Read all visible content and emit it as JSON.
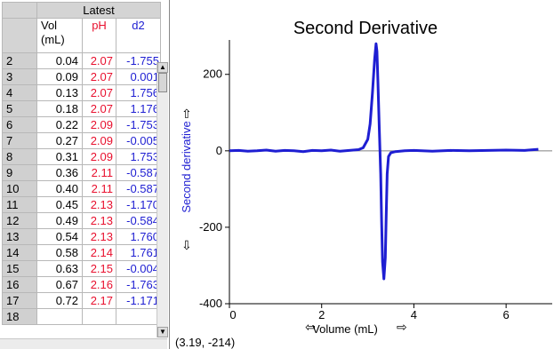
{
  "table": {
    "group_header": "Latest",
    "columns": [
      {
        "name": "Vol",
        "unit": "(mL)",
        "color": "#000000"
      },
      {
        "name": "pH",
        "unit": "",
        "color": "#e8102e"
      },
      {
        "name": "d2",
        "unit": "",
        "color": "#1e1ed2"
      }
    ],
    "rows": [
      {
        "n": "2",
        "vol": "0.04",
        "ph": "2.07",
        "d2": "-1.755"
      },
      {
        "n": "3",
        "vol": "0.09",
        "ph": "2.07",
        "d2": "0.001"
      },
      {
        "n": "4",
        "vol": "0.13",
        "ph": "2.07",
        "d2": "1.756"
      },
      {
        "n": "5",
        "vol": "0.18",
        "ph": "2.07",
        "d2": "1.176"
      },
      {
        "n": "6",
        "vol": "0.22",
        "ph": "2.09",
        "d2": "-1.753"
      },
      {
        "n": "7",
        "vol": "0.27",
        "ph": "2.09",
        "d2": "-0.005"
      },
      {
        "n": "8",
        "vol": "0.31",
        "ph": "2.09",
        "d2": "1.753"
      },
      {
        "n": "9",
        "vol": "0.36",
        "ph": "2.11",
        "d2": "-0.587"
      },
      {
        "n": "10",
        "vol": "0.40",
        "ph": "2.11",
        "d2": "-0.587"
      },
      {
        "n": "11",
        "vol": "0.45",
        "ph": "2.13",
        "d2": "-1.170"
      },
      {
        "n": "12",
        "vol": "0.49",
        "ph": "2.13",
        "d2": "-0.584"
      },
      {
        "n": "13",
        "vol": "0.54",
        "ph": "2.13",
        "d2": "1.760"
      },
      {
        "n": "14",
        "vol": "0.58",
        "ph": "2.14",
        "d2": "1.761"
      },
      {
        "n": "15",
        "vol": "0.63",
        "ph": "2.15",
        "d2": "-0.004"
      },
      {
        "n": "16",
        "vol": "0.67",
        "ph": "2.16",
        "d2": "-1.763"
      },
      {
        "n": "17",
        "vol": "0.72",
        "ph": "2.17",
        "d2": "-1.171"
      }
    ],
    "partial_row": "18"
  },
  "graph": {
    "coordinate_readout": "(3.19, -214)",
    "axis_arrow_up": "⇧",
    "axis_arrow_down": "⇩",
    "axis_arrow_left": "⇦",
    "axis_arrow_right": "⇨"
  },
  "chart_data": {
    "type": "line",
    "title": "Second Derivative",
    "xlabel": "Volume (mL)",
    "ylabel": "Second derivative",
    "xlim": [
      0,
      7
    ],
    "ylim": [
      -400,
      290
    ],
    "x_ticks": [
      0,
      2,
      4,
      6
    ],
    "y_ticks": [
      200,
      0,
      -200,
      -400
    ],
    "grid": false,
    "line_color": "#1e1ed2",
    "series": [
      {
        "x": [
          0.0,
          0.2,
          0.4,
          0.6,
          0.8,
          1.0,
          1.2,
          1.4,
          1.6,
          1.8,
          2.0,
          2.2,
          2.4,
          2.6,
          2.8,
          2.9,
          3.0,
          3.05,
          3.1,
          3.15,
          3.18,
          3.2,
          3.22,
          3.25,
          3.28,
          3.3,
          3.32,
          3.35,
          3.38,
          3.4,
          3.42,
          3.45,
          3.5,
          3.6,
          3.8,
          4.0,
          4.4,
          4.8,
          5.2,
          5.6,
          6.0,
          6.4,
          6.7
        ],
        "y": [
          0,
          1,
          -1,
          0,
          2,
          -1,
          1,
          0,
          -2,
          1,
          0,
          2,
          -1,
          1,
          3,
          8,
          30,
          70,
          150,
          240,
          280,
          260,
          180,
          60,
          -60,
          -180,
          -290,
          -335,
          -280,
          -170,
          -60,
          -15,
          -5,
          -2,
          0,
          1,
          -1,
          1,
          0,
          1,
          2,
          1,
          4
        ]
      }
    ]
  }
}
